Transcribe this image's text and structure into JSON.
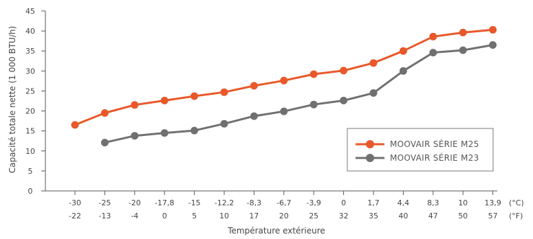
{
  "chart_data": {
    "type": "line",
    "xlabel": "Température extérieure",
    "ylabel": "Capacité totale nette  (1 000 BTU/h)",
    "ylim": [
      0,
      45
    ],
    "yticks": [
      0,
      5,
      10,
      15,
      20,
      25,
      30,
      35,
      40,
      45
    ],
    "grid": false,
    "legend_position": "bottom-right",
    "x_celsius": [
      "-30",
      "-25",
      "-20",
      "-17,8",
      "-15",
      "-12,2",
      "-8,3",
      "-6,7",
      "-3,9",
      "0",
      "1,7",
      "4,4",
      "8,3",
      "10",
      "13,9"
    ],
    "x_fahrenheit": [
      "-22",
      "-13",
      "-4",
      "0",
      "5",
      "10",
      "17",
      "20",
      "25",
      "32",
      "35",
      "40",
      "47",
      "50",
      "57"
    ],
    "unit_celsius": "(°C)",
    "unit_fahrenheit": "(°F)",
    "series": [
      {
        "name": "MOOVAIR SÉRIE M25",
        "color": "#e8582a",
        "values": [
          16.5,
          19.5,
          21.5,
          22.6,
          23.7,
          24.7,
          26.3,
          27.6,
          29.2,
          30.1,
          32.0,
          35.0,
          38.6,
          39.6,
          40.3
        ]
      },
      {
        "name": "MOOVAIR SÉRIE M23",
        "color": "#707070",
        "values": [
          null,
          12.1,
          13.8,
          14.5,
          15.1,
          16.8,
          18.7,
          19.9,
          21.6,
          22.6,
          24.5,
          30.0,
          34.6,
          35.2,
          36.5
        ]
      }
    ]
  }
}
